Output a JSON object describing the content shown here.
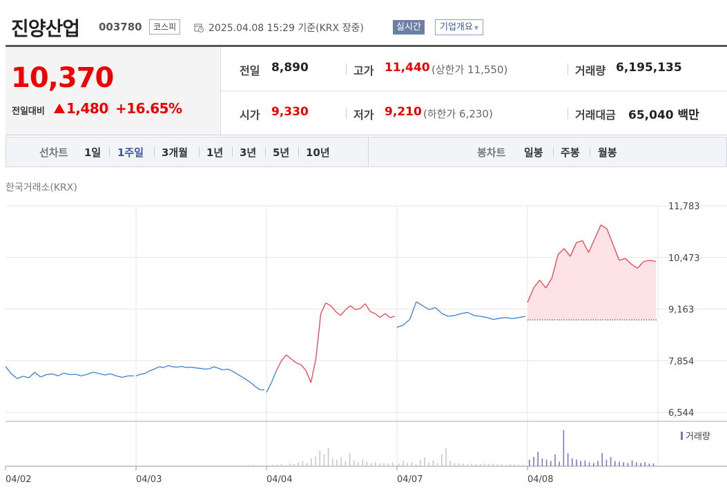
{
  "header": {
    "stock_name": "진양산업",
    "stock_code": "003780",
    "market": "코스피",
    "timestamp": "2025.04.08 15:29 기준(KRX 장중)",
    "realtime": "실시간",
    "company_info": "기업개요"
  },
  "price": {
    "current": "10,370",
    "change_label": "전일대비",
    "change": "1,480",
    "change_rate": "+16.65%",
    "up_color": "#e00000"
  },
  "summary": {
    "prev_close": {
      "label": "전일",
      "value": "8,890"
    },
    "high": {
      "label": "고가",
      "value": "11,440",
      "limit_label": "(상한가 11,550)"
    },
    "volume": {
      "label": "거래량",
      "value": "6,195,135"
    },
    "open": {
      "label": "시가",
      "value": "9,330"
    },
    "low": {
      "label": "저가",
      "value": "9,210",
      "limit_label": "(하한가 6,230)"
    },
    "amount": {
      "label": "거래대금",
      "value": "65,040 백만"
    }
  },
  "toolbar": {
    "line_chart_label": "선차트",
    "periods": [
      "1일",
      "1주일",
      "3개월",
      "1년",
      "3년",
      "5년",
      "10년"
    ],
    "active_period": "1주일",
    "candle_chart_label": "봉차트",
    "candle_periods": [
      "일봉",
      "주봉",
      "월봉"
    ]
  },
  "chart": {
    "exchange": "한국거래소(KRX)",
    "y_ticks": [
      "11,783",
      "10,473",
      "9,163",
      "7,854",
      "6,544"
    ],
    "x_ticks": [
      "04/02",
      "04/03",
      "04/04",
      "04/07",
      "04/08"
    ],
    "volume_legend": "거래량",
    "colors": {
      "up": "#f04050",
      "down": "#3a7fd5",
      "fill": "#fde3e5",
      "volume_today": "#8b6fc0",
      "volume_prev": "#c8c8c8"
    }
  },
  "chart_data": {
    "type": "line",
    "ylim": [
      6544,
      11783
    ],
    "prev_close": 8890,
    "days": [
      {
        "date": "04/02",
        "values": [
          7710,
          7520,
          7400,
          7460,
          7420,
          7560,
          7440,
          7500,
          7520,
          7470,
          7540,
          7500,
          7510,
          7470,
          7510,
          7560,
          7530,
          7490,
          7520,
          7470,
          7430,
          7470,
          7470
        ]
      },
      {
        "date": "04/03",
        "values": [
          7470,
          7510,
          7530,
          7600,
          7640,
          7700,
          7680,
          7730,
          7700,
          7690,
          7710,
          7680,
          7690,
          7670,
          7660,
          7640,
          7650,
          7700,
          7660,
          7620,
          7640,
          7590,
          7520,
          7450,
          7380,
          7300,
          7200,
          7120,
          7110
        ]
      },
      {
        "date": "04/04",
        "values": [
          7050,
          7300,
          7600,
          7850,
          8000,
          7900,
          7800,
          7750,
          7600,
          7300,
          7900,
          9050,
          9320,
          9250,
          9100,
          9000,
          9150,
          9250,
          9150,
          9180,
          9300,
          9100,
          9050,
          8950,
          9050,
          8950,
          8980
        ]
      },
      {
        "date": "04/07",
        "values": [
          8700,
          8760,
          8900,
          9350,
          9250,
          9150,
          9200,
          9050,
          8980,
          9000,
          9050,
          9080,
          9000,
          8980,
          8950,
          8900,
          8930,
          8950,
          8920,
          8950,
          8980
        ]
      },
      {
        "date": "04/08",
        "values": [
          9330,
          9700,
          9900,
          9700,
          9950,
          10550,
          10700,
          10500,
          10850,
          10900,
          10600,
          10950,
          11300,
          11200,
          10800,
          10400,
          10450,
          10300,
          10200,
          10370,
          10400,
          10370
        ]
      }
    ]
  }
}
